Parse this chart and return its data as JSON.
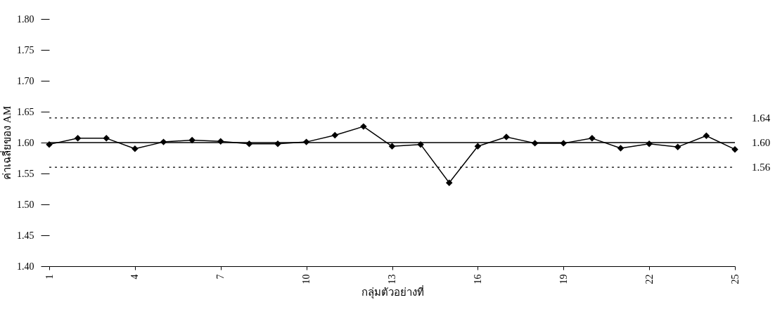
{
  "chart_data": {
    "type": "line",
    "xlabel": "กลุ่มตัวอย่างที่",
    "ylabel": "ค่าเฉลี่ยของ AM",
    "x": [
      1,
      2,
      3,
      4,
      5,
      6,
      7,
      8,
      9,
      10,
      11,
      12,
      13,
      14,
      15,
      16,
      17,
      18,
      19,
      20,
      21,
      22,
      23,
      24,
      25
    ],
    "series": [
      {
        "color": "#000000",
        "values": [
          1.597,
          1.607,
          1.607,
          1.59,
          1.601,
          1.604,
          1.602,
          1.598,
          1.598,
          1.601,
          1.612,
          1.626,
          1.594,
          1.597,
          1.535,
          1.594,
          1.609,
          1.599,
          1.599,
          1.607,
          1.591,
          1.598,
          1.593,
          1.611,
          1.589
        ]
      }
    ],
    "xlim": [
      1,
      25
    ],
    "xticks": [
      1,
      4,
      7,
      10,
      13,
      16,
      19,
      22,
      25
    ],
    "ylim": [
      1.4,
      1.8
    ],
    "yticks": [
      {
        "value": 1.4,
        "label": "1.40"
      },
      {
        "value": 1.45,
        "label": "1.45"
      },
      {
        "value": 1.5,
        "label": "1.50"
      },
      {
        "value": 1.55,
        "label": "1.55"
      },
      {
        "value": 1.6,
        "label": "1.60"
      },
      {
        "value": 1.65,
        "label": "1.65"
      },
      {
        "value": 1.7,
        "label": "1.70"
      },
      {
        "value": 1.75,
        "label": "1.75"
      },
      {
        "value": 1.8,
        "label": "1.80"
      }
    ],
    "ref_lines": [
      {
        "axis": "y",
        "value": 1.64,
        "label": "1.64",
        "line_style": "dotted",
        "color": "#000000"
      },
      {
        "axis": "y",
        "value": 1.6,
        "label": "1.60",
        "line_style": "solid",
        "color": "#000000"
      },
      {
        "axis": "y",
        "value": 1.56,
        "label": "1.56",
        "line_style": "dotted",
        "color": "#000000"
      }
    ],
    "marker": "diamond",
    "line_style": "solid",
    "grid": false
  }
}
